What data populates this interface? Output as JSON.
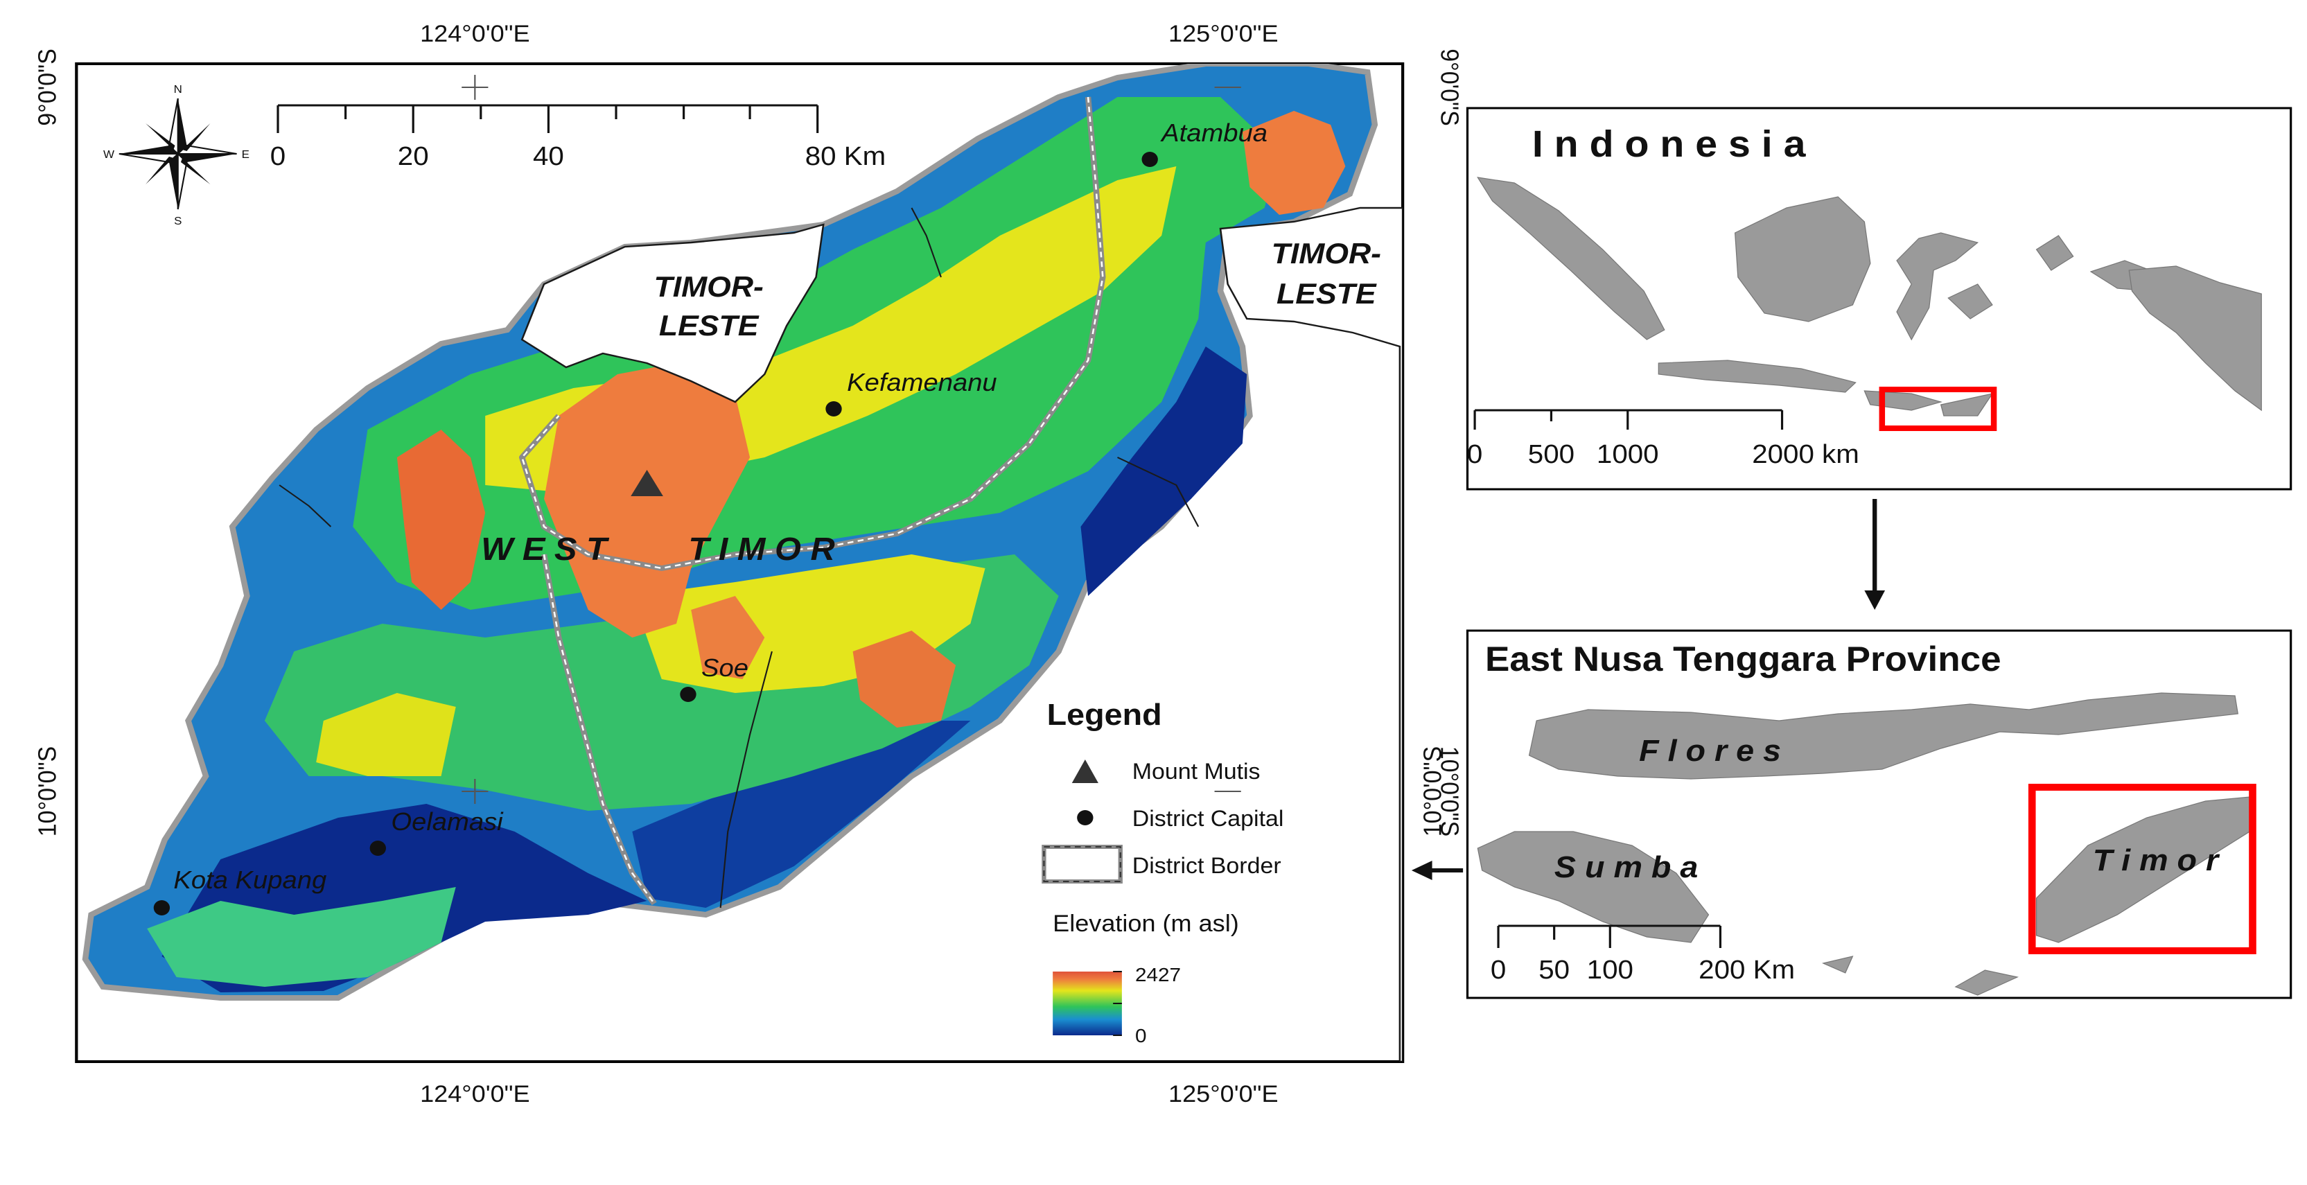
{
  "main_map": {
    "coords": {
      "top_lon_1": "124°0'0\"E",
      "top_lon_2": "125°0'0\"E",
      "bottom_lon_1": "124°0'0\"E",
      "bottom_lon_2": "125°0'0\"E",
      "left_lat_1": "9°0'0\"S",
      "left_lat_2": "10°0'0\"S",
      "right_lat_1": "9°0'0\"S",
      "right_lat_2": "10°0'0\"S"
    },
    "compass": {
      "n": "N",
      "s": "S",
      "e": "E",
      "w": "W"
    },
    "scale": {
      "t0": "0",
      "t1": "20",
      "t2": "40",
      "t3": "80 Km"
    },
    "labels": {
      "timor_leste_1a": "TIMOR-",
      "timor_leste_1b": "LESTE",
      "timor_leste_2a": "TIMOR-",
      "timor_leste_2b": "LESTE",
      "west": "W E S T",
      "timor": "T I M O R"
    },
    "towns": {
      "atambua": "Atambua",
      "kefamenanu": "Kefamenanu",
      "soe": "Soe",
      "oelamasi": "Oelamasi",
      "kota_kupang": "Kota Kupang"
    },
    "legend": {
      "title": "Legend",
      "mount": "Mount Mutis",
      "capital": "District Capital",
      "border": "District Border",
      "elev_title": "Elevation (m asl)",
      "elev_max": "2427",
      "elev_min": "0"
    },
    "colors": {
      "low": "#0b2a8c",
      "mid_low": "#1a8fd0",
      "mid": "#2fc45a",
      "mid_high": "#e4e51c",
      "high": "#ee7c3e",
      "peak": "#e0533a"
    }
  },
  "indonesia_inset": {
    "title": "I n d o n e s i a",
    "scale": {
      "t0": "0",
      "t1": "500",
      "t2": "1000",
      "t3": "2000 km"
    }
  },
  "ntt_inset": {
    "title": "East Nusa Tenggara Province",
    "flores": "F l o r e s",
    "sumba": "S u m b a",
    "timor": "T i m o r",
    "lat1": "10°0'0\"S",
    "scale": {
      "t0": "0",
      "t1": "50",
      "t2": "100",
      "t3": "200 Km"
    }
  }
}
